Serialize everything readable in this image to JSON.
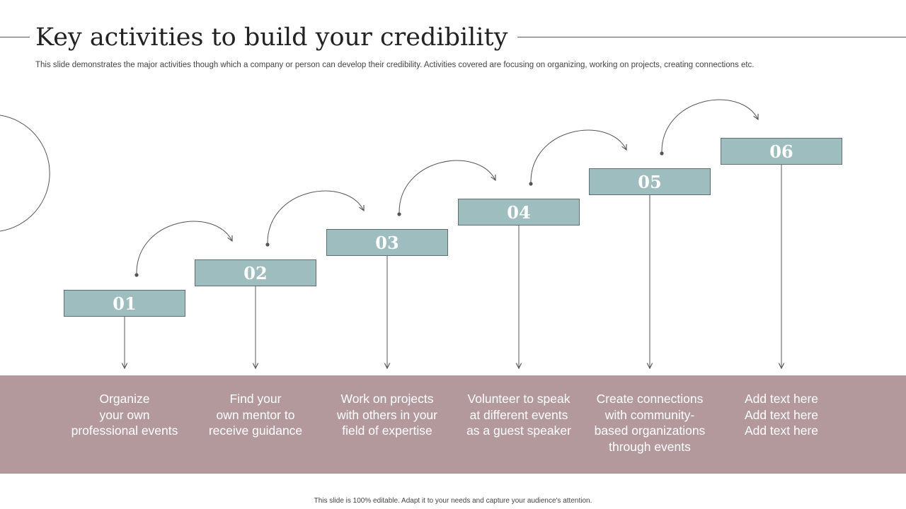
{
  "slide": {
    "title": "Key activities to build your credibility",
    "subtitle": "This slide demonstrates the major activities though which a company or person can develop their credibility. Activities  covered are focusing on organizing, working on projects, creating connections etc.",
    "footer": "This slide is 100% editable.  Adapt it to your needs and capture your audience's attention."
  },
  "colors": {
    "step_box": "#9dbdbe",
    "band": "#b4999c",
    "line": "#555555"
  },
  "steps": [
    {
      "number": "01",
      "text": "Organize\nyour own\nprofessional events"
    },
    {
      "number": "02",
      "text": "Find your\nown mentor to\nreceive guidance"
    },
    {
      "number": "03",
      "text": "Work on projects\nwith others in your\nfield of expertise"
    },
    {
      "number": "04",
      "text": "Volunteer to speak\nat different events\nas a guest speaker"
    },
    {
      "number": "05",
      "text": "Create connections\nwith community-\nbased organizations\nthrough events"
    },
    {
      "number": "06",
      "text": "Add text here\nAdd text here\nAdd text here"
    }
  ]
}
